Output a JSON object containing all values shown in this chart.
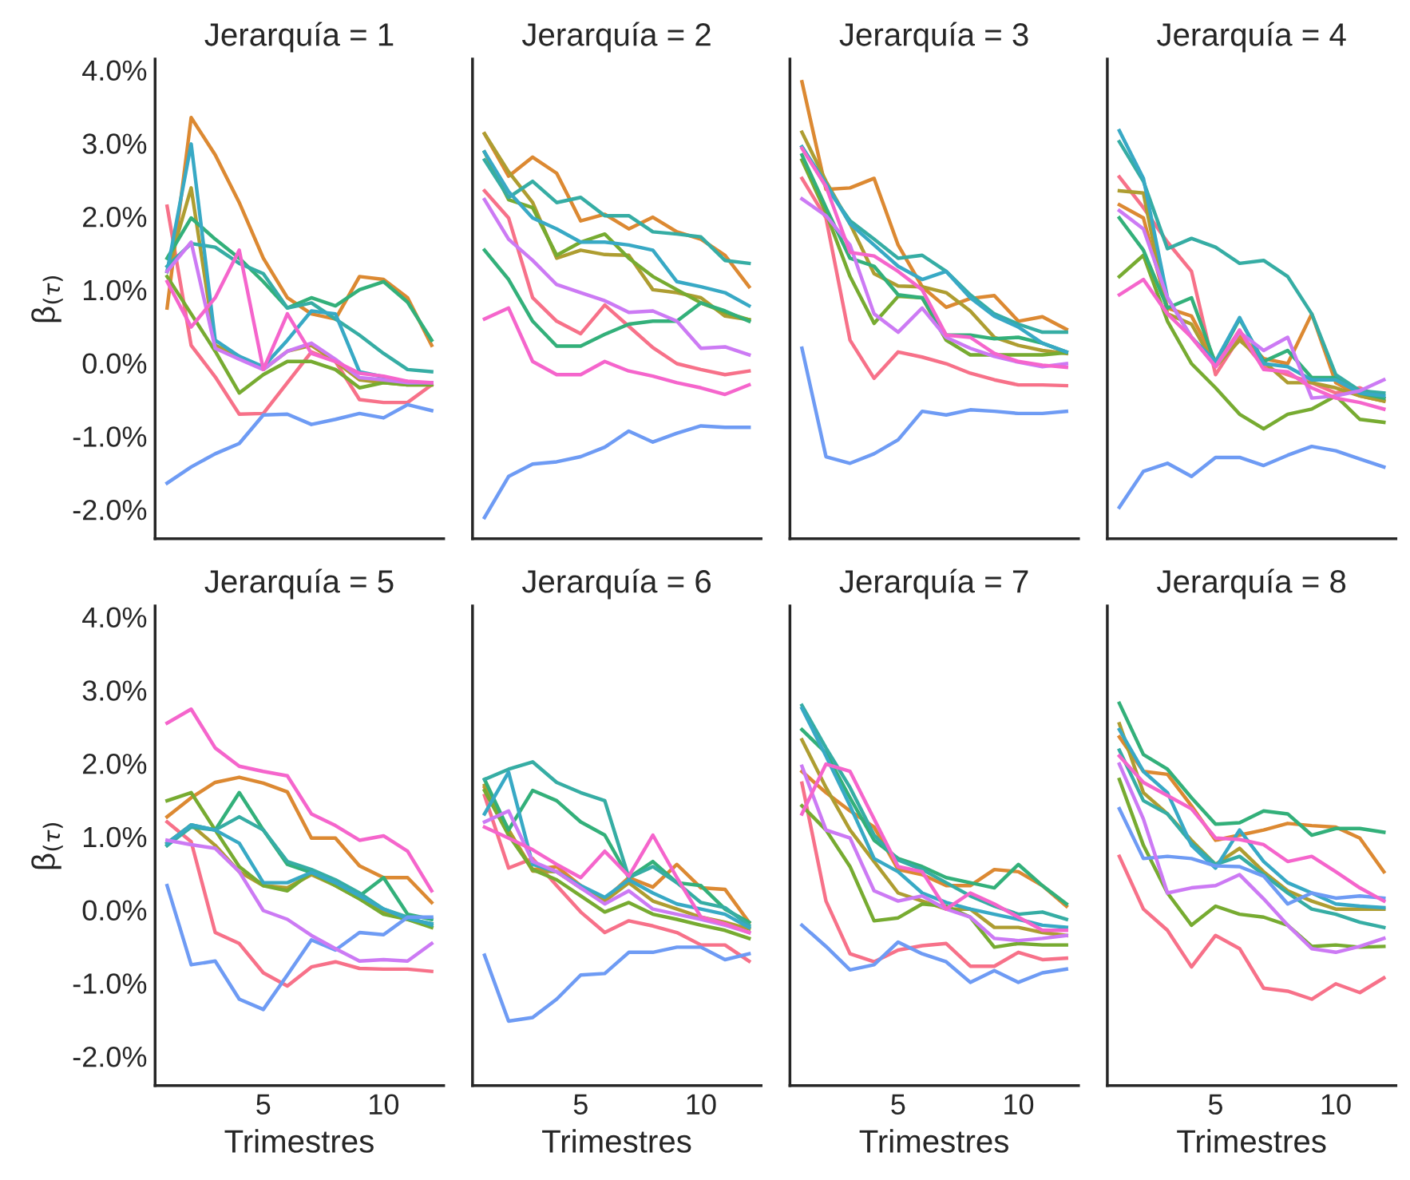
{
  "chart_data": [
    {
      "type": "line",
      "title": "Jerarquía = 1",
      "ylabel": "β$_{(τ)}$",
      "tick_labels": "y",
      "x": [
        1,
        2,
        3,
        4,
        5,
        6,
        7,
        8,
        9,
        10,
        11,
        12
      ],
      "xlim": [
        0.5,
        12.5
      ],
      "ylim": [
        -2.4,
        4.15
      ],
      "yticks": [
        {
          "value": -2,
          "label": "-2.0%"
        },
        {
          "value": -1,
          "label": "-1.0%"
        },
        {
          "value": 0,
          "label": "0.0%"
        },
        {
          "value": 1,
          "label": "1.0%"
        },
        {
          "value": 2,
          "label": "2.0%"
        },
        {
          "value": 3,
          "label": "3.0%"
        },
        {
          "value": 4,
          "label": "4.0%"
        }
      ],
      "grid": false,
      "legend": false,
      "series": [
        {
          "color": "#f77189",
          "values": [
            2.14,
            0.24,
            -0.19,
            -0.7,
            -0.69,
            -0.27,
            0.15,
            0.02,
            -0.5,
            -0.54,
            -0.54,
            -0.3
          ]
        },
        {
          "color": "#dc8932",
          "values": [
            0.75,
            3.35,
            2.84,
            2.19,
            1.43,
            0.89,
            0.67,
            0.6,
            1.18,
            1.14,
            0.89,
            0.24
          ]
        },
        {
          "color": "#ae9d31",
          "values": [
            1.25,
            2.39,
            0.24,
            0.09,
            -0.09,
            0.16,
            0.24,
            0.02,
            -0.23,
            -0.27,
            -0.3,
            -0.3
          ]
        },
        {
          "color": "#77ab31",
          "values": [
            1.18,
            0.67,
            0.16,
            -0.41,
            -0.16,
            0.02,
            0.02,
            -0.09,
            -0.34,
            -0.27,
            -0.3,
            -0.3
          ]
        },
        {
          "color": "#33b07a",
          "values": [
            1.43,
            1.98,
            1.69,
            1.43,
            1.11,
            0.75,
            0.89,
            0.78,
            1.0,
            1.11,
            0.83,
            0.31
          ]
        },
        {
          "color": "#36ada4",
          "values": [
            1.32,
            1.63,
            1.58,
            1.36,
            1.22,
            0.75,
            0.82,
            0.6,
            0.38,
            0.13,
            -0.09,
            -0.12
          ]
        },
        {
          "color": "#38a9c5",
          "values": [
            1.25,
            2.99,
            0.31,
            0.09,
            -0.05,
            0.31,
            0.71,
            0.67,
            -0.12,
            -0.19,
            -0.27,
            -0.27
          ]
        },
        {
          "color": "#6e9bf4",
          "values": [
            -1.64,
            -1.42,
            -1.24,
            -1.1,
            -0.71,
            -0.7,
            -0.84,
            -0.77,
            -0.69,
            -0.75,
            -0.57,
            -0.65
          ]
        },
        {
          "color": "#cc7af4",
          "values": [
            1.25,
            1.65,
            0.2,
            0.05,
            -0.09,
            0.16,
            0.27,
            0.05,
            -0.2,
            -0.23,
            -0.27,
            -0.27
          ]
        },
        {
          "color": "#f565cc",
          "values": [
            1.11,
            0.49,
            0.89,
            1.54,
            -0.09,
            0.67,
            0.13,
            0.02,
            -0.14,
            -0.18,
            -0.25,
            -0.27
          ]
        }
      ]
    },
    {
      "type": "line",
      "title": "Jerarquía = 2",
      "tick_labels": false,
      "x": [
        1,
        2,
        3,
        4,
        5,
        6,
        7,
        8,
        9,
        10,
        11,
        12
      ],
      "xlim": [
        0.5,
        12.5
      ],
      "ylim": [
        -2.4,
        4.15
      ],
      "grid": false,
      "legend": false,
      "series": [
        {
          "color": "#f77189",
          "values": [
            2.35,
            1.98,
            0.89,
            0.57,
            0.4,
            0.79,
            0.5,
            0.21,
            -0.01,
            -0.09,
            -0.16,
            -0.11
          ]
        },
        {
          "color": "#dc8932",
          "values": [
            3.13,
            2.55,
            2.81,
            2.59,
            1.94,
            2.03,
            1.83,
            1.99,
            1.79,
            1.69,
            1.47,
            1.04
          ]
        },
        {
          "color": "#ae9d31",
          "values": [
            3.13,
            2.61,
            2.19,
            1.43,
            1.54,
            1.48,
            1.47,
            1.0,
            0.96,
            0.89,
            0.64,
            0.59
          ]
        },
        {
          "color": "#77ab31",
          "values": [
            2.88,
            2.23,
            2.12,
            1.47,
            1.65,
            1.76,
            1.43,
            1.18,
            1.0,
            0.82,
            0.69,
            0.59
          ]
        },
        {
          "color": "#33b07a",
          "values": [
            1.54,
            1.14,
            0.57,
            0.23,
            0.23,
            0.39,
            0.53,
            0.57,
            0.57,
            0.82,
            0.71,
            0.57
          ]
        },
        {
          "color": "#36ada4",
          "values": [
            2.77,
            2.26,
            2.48,
            2.19,
            2.26,
            2.01,
            2.01,
            1.79,
            1.76,
            1.72,
            1.4,
            1.36
          ]
        },
        {
          "color": "#38a9c5",
          "values": [
            2.88,
            2.34,
            1.98,
            1.83,
            1.65,
            1.65,
            1.61,
            1.54,
            1.11,
            1.04,
            0.96,
            0.78
          ]
        },
        {
          "color": "#6e9bf4",
          "values": [
            -2.11,
            -1.55,
            -1.38,
            -1.35,
            -1.28,
            -1.15,
            -0.93,
            -1.08,
            -0.96,
            -0.86,
            -0.88,
            -0.88
          ]
        },
        {
          "color": "#cc7af4",
          "values": [
            2.23,
            1.69,
            1.4,
            1.07,
            0.96,
            0.85,
            0.69,
            0.71,
            0.57,
            0.2,
            0.22,
            0.11
          ]
        },
        {
          "color": "#f565cc",
          "values": [
            0.6,
            0.75,
            0.02,
            -0.16,
            -0.16,
            0.02,
            -0.11,
            -0.18,
            -0.27,
            -0.34,
            -0.43,
            -0.3
          ]
        }
      ]
    },
    {
      "type": "line",
      "title": "Jerarquía = 3",
      "tick_labels": false,
      "x": [
        1,
        2,
        3,
        4,
        5,
        6,
        7,
        8,
        9,
        10,
        11,
        12
      ],
      "xlim": [
        0.5,
        12.5
      ],
      "ylim": [
        -2.4,
        4.15
      ],
      "grid": false,
      "legend": false,
      "series": [
        {
          "color": "#f77189",
          "values": [
            2.52,
            1.98,
            0.31,
            -0.21,
            0.15,
            0.08,
            -0.01,
            -0.14,
            -0.23,
            -0.3,
            -0.3,
            -0.31
          ]
        },
        {
          "color": "#dc8932",
          "values": [
            3.84,
            2.37,
            2.39,
            2.52,
            1.61,
            1.04,
            0.76,
            0.88,
            0.92,
            0.57,
            0.63,
            0.46
          ]
        },
        {
          "color": "#ae9d31",
          "values": [
            3.15,
            2.48,
            1.9,
            1.22,
            1.05,
            1.04,
            0.96,
            0.71,
            0.35,
            0.24,
            0.17,
            0.13
          ]
        },
        {
          "color": "#77ab31",
          "values": [
            2.77,
            2.05,
            1.18,
            0.54,
            0.91,
            0.89,
            0.31,
            0.11,
            0.11,
            0.11,
            0.11,
            0.14
          ]
        },
        {
          "color": "#33b07a",
          "values": [
            2.84,
            2.12,
            1.43,
            1.32,
            0.93,
            0.89,
            0.38,
            0.38,
            0.33,
            0.35,
            0.27,
            0.15
          ]
        },
        {
          "color": "#36ada4",
          "values": [
            2.95,
            2.41,
            1.94,
            1.69,
            1.43,
            1.47,
            1.25,
            0.93,
            0.67,
            0.53,
            0.42,
            0.42
          ]
        },
        {
          "color": "#38a9c5",
          "values": [
            2.95,
            2.45,
            1.9,
            1.61,
            1.32,
            1.14,
            1.25,
            0.89,
            0.64,
            0.49,
            0.27,
            0.15
          ]
        },
        {
          "color": "#6e9bf4",
          "values": [
            0.2,
            -1.28,
            -1.37,
            -1.24,
            -1.05,
            -0.66,
            -0.71,
            -0.64,
            -0.66,
            -0.69,
            -0.69,
            -0.66
          ]
        },
        {
          "color": "#cc7af4",
          "values": [
            2.24,
            2.01,
            1.61,
            0.67,
            0.42,
            0.75,
            0.35,
            0.2,
            0.09,
            0.01,
            -0.05,
            -0.01
          ]
        },
        {
          "color": "#f565cc",
          "values": [
            2.93,
            2.41,
            1.51,
            1.46,
            1.25,
            1.0,
            0.38,
            0.35,
            0.13,
            0.02,
            -0.03,
            -0.06
          ]
        }
      ]
    },
    {
      "type": "line",
      "title": "Jerarquía = 4",
      "tick_labels": false,
      "x": [
        1,
        2,
        3,
        4,
        5,
        6,
        7,
        8,
        9,
        10,
        11,
        12
      ],
      "xlim": [
        0.5,
        12.5
      ],
      "ylim": [
        -2.4,
        4.15
      ],
      "grid": false,
      "legend": false,
      "series": [
        {
          "color": "#f77189",
          "values": [
            2.54,
            2.12,
            1.65,
            1.25,
            -0.16,
            0.35,
            -0.05,
            -0.16,
            -0.27,
            -0.41,
            -0.34,
            -0.48
          ]
        },
        {
          "color": "#dc8932",
          "values": [
            2.16,
            1.98,
            0.75,
            0.64,
            0.02,
            0.38,
            0.06,
            -0.01,
            0.67,
            -0.27,
            -0.45,
            -0.52
          ]
        },
        {
          "color": "#ae9d31",
          "values": [
            2.35,
            2.32,
            0.67,
            0.53,
            -0.05,
            0.31,
            0.02,
            -0.27,
            -0.27,
            -0.34,
            -0.45,
            -0.52
          ]
        },
        {
          "color": "#77ab31",
          "values": [
            1.18,
            1.47,
            0.57,
            -0.01,
            -0.34,
            -0.7,
            -0.9,
            -0.7,
            -0.63,
            -0.45,
            -0.77,
            -0.81
          ]
        },
        {
          "color": "#33b07a",
          "values": [
            1.98,
            1.54,
            0.75,
            0.89,
            -0.01,
            0.6,
            0.02,
            0.17,
            -0.2,
            -0.2,
            -0.41,
            -0.48
          ]
        },
        {
          "color": "#36ada4",
          "values": [
            3.02,
            2.48,
            1.56,
            1.7,
            1.58,
            1.36,
            1.4,
            1.18,
            0.67,
            -0.16,
            -0.38,
            -0.41
          ]
        },
        {
          "color": "#38a9c5",
          "values": [
            3.17,
            2.52,
            0.89,
            0.35,
            0.02,
            0.62,
            -0.01,
            -0.05,
            -0.23,
            -0.23,
            -0.41,
            -0.45
          ]
        },
        {
          "color": "#6e9bf4",
          "values": [
            -1.97,
            -1.48,
            -1.37,
            -1.55,
            -1.29,
            -1.29,
            -1.4,
            -1.26,
            -1.14,
            -1.2,
            -1.31,
            -1.42
          ]
        },
        {
          "color": "#cc7af4",
          "values": [
            2.08,
            1.83,
            0.89,
            0.35,
            -0.05,
            0.42,
            0.17,
            0.35,
            -0.48,
            -0.45,
            -0.38,
            -0.23
          ]
        },
        {
          "color": "#f565cc",
          "values": [
            0.93,
            1.14,
            0.67,
            0.35,
            -0.05,
            0.45,
            -0.09,
            -0.12,
            -0.34,
            -0.48,
            -0.54,
            -0.63
          ]
        }
      ]
    },
    {
      "type": "line",
      "title": "Jerarquía = 5",
      "ylabel": "β$_{(τ)}$",
      "xlabel": "Trimestres",
      "x": [
        1,
        2,
        3,
        4,
        5,
        6,
        7,
        8,
        9,
        10,
        11,
        12
      ],
      "xlim": [
        0.5,
        12.5
      ],
      "ylim": [
        -2.4,
        4.15
      ],
      "xticks": [
        5,
        10
      ],
      "yticks": [
        {
          "value": -2,
          "label": "-2.0%"
        },
        {
          "value": -1,
          "label": "-1.0%"
        },
        {
          "value": 0,
          "label": "0.0%"
        },
        {
          "value": 1,
          "label": "1.0%"
        },
        {
          "value": 2,
          "label": "2.0%"
        },
        {
          "value": 3,
          "label": "3.0%"
        },
        {
          "value": 4,
          "label": "4.0%"
        }
      ],
      "grid": false,
      "legend": false,
      "series": [
        {
          "color": "#f77189",
          "values": [
            1.2,
            0.93,
            -0.31,
            -0.46,
            -0.86,
            -1.04,
            -0.78,
            -0.71,
            -0.8,
            -0.81,
            -0.81,
            -0.84
          ]
        },
        {
          "color": "#dc8932",
          "values": [
            1.27,
            1.53,
            1.74,
            1.81,
            1.73,
            1.61,
            0.98,
            0.98,
            0.6,
            0.44,
            0.44,
            0.1
          ]
        },
        {
          "color": "#ae9d31",
          "values": [
            0.91,
            1.16,
            0.88,
            0.52,
            0.33,
            0.3,
            0.48,
            0.33,
            0.15,
            -0.03,
            -0.13,
            -0.19
          ]
        },
        {
          "color": "#77ab31",
          "values": [
            1.49,
            1.6,
            1.09,
            0.59,
            0.33,
            0.26,
            0.51,
            0.33,
            0.15,
            -0.06,
            -0.13,
            -0.24
          ]
        },
        {
          "color": "#33b07a",
          "values": [
            0.88,
            1.16,
            1.09,
            1.6,
            1.09,
            0.62,
            0.51,
            0.37,
            0.19,
            0.44,
            -0.06,
            -0.13
          ]
        },
        {
          "color": "#36ada4",
          "values": [
            0.88,
            1.13,
            1.09,
            1.27,
            1.09,
            0.66,
            0.55,
            0.41,
            0.23,
            0.01,
            -0.1,
            -0.21
          ]
        },
        {
          "color": "#38a9c5",
          "values": [
            0.91,
            1.16,
            1.09,
            0.91,
            0.37,
            0.37,
            0.51,
            0.37,
            0.19,
            0.01,
            -0.12,
            -0.19
          ]
        },
        {
          "color": "#6e9bf4",
          "values": [
            0.33,
            -0.75,
            -0.7,
            -1.22,
            -1.36,
            -0.89,
            -0.41,
            -0.55,
            -0.31,
            -0.34,
            -0.1,
            -0.1
          ]
        },
        {
          "color": "#cc7af4",
          "values": [
            0.95,
            0.89,
            0.84,
            0.52,
            -0.01,
            -0.13,
            -0.35,
            -0.53,
            -0.7,
            -0.68,
            -0.7,
            -0.46
          ]
        },
        {
          "color": "#f565cc",
          "values": [
            2.55,
            2.74,
            2.21,
            1.96,
            1.89,
            1.83,
            1.31,
            1.15,
            0.95,
            1.01,
            0.8,
            0.26
          ]
        }
      ]
    },
    {
      "type": "line",
      "title": "Jerarquía = 6",
      "xlabel": "Trimestres",
      "tick_labels": "x",
      "x": [
        1,
        2,
        3,
        4,
        5,
        6,
        7,
        8,
        9,
        10,
        11,
        12
      ],
      "xlim": [
        0.5,
        12.5
      ],
      "ylim": [
        -2.4,
        4.15
      ],
      "xticks": [
        5,
        10
      ],
      "grid": false,
      "legend": false,
      "series": [
        {
          "color": "#f77189",
          "values": [
            1.56,
            0.57,
            0.7,
            0.33,
            -0.03,
            -0.31,
            -0.15,
            -0.22,
            -0.31,
            -0.48,
            -0.48,
            -0.7
          ]
        },
        {
          "color": "#dc8932",
          "values": [
            1.67,
            1.09,
            0.55,
            0.59,
            0.33,
            0.14,
            0.44,
            0.31,
            0.62,
            0.3,
            0.28,
            -0.17
          ]
        },
        {
          "color": "#ae9d31",
          "values": [
            1.7,
            1.09,
            0.53,
            0.52,
            0.3,
            0.12,
            0.37,
            0.12,
            0.01,
            -0.1,
            -0.17,
            -0.26
          ]
        },
        {
          "color": "#77ab31",
          "values": [
            1.63,
            1.02,
            0.55,
            0.41,
            0.19,
            -0.03,
            0.1,
            -0.06,
            -0.13,
            -0.21,
            -0.28,
            -0.39
          ]
        },
        {
          "color": "#33b07a",
          "values": [
            1.78,
            1.09,
            1.63,
            1.49,
            1.2,
            1.02,
            0.44,
            0.66,
            0.37,
            0.33,
            0.01,
            -0.17
          ]
        },
        {
          "color": "#36ada4",
          "values": [
            1.78,
            1.92,
            2.02,
            1.74,
            1.6,
            1.49,
            0.44,
            0.59,
            0.37,
            0.1,
            0.03,
            -0.21
          ]
        },
        {
          "color": "#38a9c5",
          "values": [
            1.31,
            1.88,
            0.62,
            0.52,
            0.33,
            0.17,
            0.41,
            0.23,
            0.08,
            0.01,
            -0.06,
            -0.24
          ]
        },
        {
          "color": "#6e9bf4",
          "values": [
            -0.62,
            -1.52,
            -1.47,
            -1.22,
            -0.89,
            -0.87,
            -0.58,
            -0.58,
            -0.51,
            -0.51,
            -0.68,
            -0.6
          ]
        },
        {
          "color": "#cc7af4",
          "values": [
            1.2,
            1.35,
            0.66,
            0.52,
            0.3,
            0.08,
            0.26,
            0.01,
            -0.06,
            -0.13,
            -0.21,
            -0.31
          ]
        },
        {
          "color": "#f565cc",
          "values": [
            1.13,
            0.98,
            0.82,
            0.62,
            0.44,
            0.8,
            0.46,
            1.02,
            0.44,
            -0.1,
            -0.19,
            -0.31
          ]
        }
      ]
    },
    {
      "type": "line",
      "title": "Jerarquía = 7",
      "xlabel": "Trimestres",
      "tick_labels": "x",
      "x": [
        1,
        2,
        3,
        4,
        5,
        6,
        7,
        8,
        9,
        10,
        11,
        12
      ],
      "xlim": [
        0.5,
        12.5
      ],
      "ylim": [
        -2.4,
        4.15
      ],
      "xticks": [
        5,
        10
      ],
      "grid": false,
      "legend": false,
      "series": [
        {
          "color": "#f77189",
          "values": [
            1.73,
            0.12,
            -0.6,
            -0.71,
            -0.55,
            -0.49,
            -0.46,
            -0.77,
            -0.77,
            -0.58,
            -0.68,
            -0.66
          ]
        },
        {
          "color": "#dc8932",
          "values": [
            1.89,
            1.6,
            1.35,
            1.13,
            0.55,
            0.48,
            0.33,
            0.33,
            0.55,
            0.52,
            0.33,
            0.05
          ]
        },
        {
          "color": "#ae9d31",
          "values": [
            2.32,
            1.67,
            1.09,
            0.66,
            0.23,
            0.12,
            0.01,
            0.01,
            -0.24,
            -0.24,
            -0.31,
            -0.35
          ]
        },
        {
          "color": "#77ab31",
          "values": [
            1.42,
            1.09,
            0.59,
            -0.15,
            -0.11,
            0.08,
            0.05,
            -0.1,
            -0.51,
            -0.46,
            -0.48,
            -0.48
          ]
        },
        {
          "color": "#33b07a",
          "values": [
            2.46,
            2.14,
            1.53,
            0.95,
            0.7,
            0.59,
            0.44,
            0.37,
            0.3,
            0.62,
            0.33,
            0.08
          ]
        },
        {
          "color": "#36ada4",
          "values": [
            2.79,
            2.21,
            1.67,
            1.02,
            0.68,
            0.55,
            0.37,
            0.19,
            0.05,
            -0.06,
            -0.03,
            -0.13
          ]
        },
        {
          "color": "#38a9c5",
          "values": [
            2.75,
            2.1,
            1.42,
            0.7,
            0.52,
            0.23,
            0.1,
            0.01,
            -0.06,
            -0.13,
            -0.21,
            -0.24
          ]
        },
        {
          "color": "#6e9bf4",
          "values": [
            -0.21,
            -0.5,
            -0.82,
            -0.75,
            -0.44,
            -0.6,
            -0.71,
            -0.99,
            -0.83,
            -0.99,
            -0.86,
            -0.81
          ]
        },
        {
          "color": "#cc7af4",
          "values": [
            1.96,
            1.09,
            0.98,
            0.26,
            0.12,
            0.19,
            0.01,
            -0.1,
            -0.39,
            -0.42,
            -0.39,
            -0.35
          ]
        },
        {
          "color": "#f565cc",
          "values": [
            1.31,
            1.99,
            1.89,
            1.24,
            0.59,
            0.52,
            0.01,
            0.23,
            0.08,
            -0.1,
            -0.28,
            -0.28
          ]
        }
      ]
    },
    {
      "type": "line",
      "title": "Jerarquía = 8",
      "xlabel": "Trimestres",
      "tick_labels": "x",
      "x": [
        1,
        2,
        3,
        4,
        5,
        6,
        7,
        8,
        9,
        10,
        11,
        12
      ],
      "xlim": [
        0.5,
        12.5
      ],
      "ylim": [
        -2.4,
        4.15
      ],
      "xticks": [
        5,
        10
      ],
      "grid": false,
      "legend": false,
      "series": [
        {
          "color": "#f77189",
          "values": [
            0.73,
            0.01,
            -0.28,
            -0.78,
            -0.35,
            -0.53,
            -1.07,
            -1.11,
            -1.22,
            -1.01,
            -1.13,
            -0.93
          ]
        },
        {
          "color": "#dc8932",
          "values": [
            2.36,
            1.89,
            1.85,
            1.42,
            0.95,
            1.02,
            1.09,
            1.18,
            1.15,
            1.13,
            0.98,
            0.52
          ]
        },
        {
          "color": "#ae9d31",
          "values": [
            2.54,
            1.6,
            1.31,
            0.95,
            0.62,
            0.84,
            0.52,
            0.26,
            0.12,
            0.01,
            0.01,
            0.01
          ]
        },
        {
          "color": "#77ab31",
          "values": [
            1.78,
            0.88,
            0.23,
            -0.21,
            0.05,
            -0.06,
            -0.1,
            -0.21,
            -0.5,
            -0.48,
            -0.51,
            -0.5
          ]
        },
        {
          "color": "#33b07a",
          "values": [
            2.82,
            2.12,
            1.92,
            1.53,
            1.17,
            1.19,
            1.35,
            1.31,
            1.02,
            1.11,
            1.11,
            1.06
          ]
        },
        {
          "color": "#36ada4",
          "values": [
            2.18,
            1.49,
            1.31,
            0.91,
            0.62,
            0.73,
            0.48,
            0.23,
            0.01,
            -0.06,
            -0.17,
            -0.24
          ]
        },
        {
          "color": "#38a9c5",
          "values": [
            2.46,
            1.89,
            1.6,
            0.88,
            0.57,
            1.09,
            0.66,
            0.37,
            0.23,
            0.08,
            0.05,
            0.03
          ]
        },
        {
          "color": "#6e9bf4",
          "values": [
            1.38,
            0.7,
            0.73,
            0.7,
            0.6,
            0.59,
            0.46,
            0.08,
            0.23,
            0.16,
            0.19,
            0.16
          ]
        },
        {
          "color": "#cc7af4",
          "values": [
            1.99,
            1.24,
            0.23,
            0.3,
            0.33,
            0.48,
            0.15,
            -0.21,
            -0.53,
            -0.58,
            -0.5,
            -0.39
          ]
        },
        {
          "color": "#f565cc",
          "values": [
            2.1,
            1.74,
            1.56,
            1.38,
            0.98,
            0.96,
            0.89,
            0.66,
            0.73,
            0.52,
            0.3,
            0.12
          ]
        }
      ]
    }
  ]
}
